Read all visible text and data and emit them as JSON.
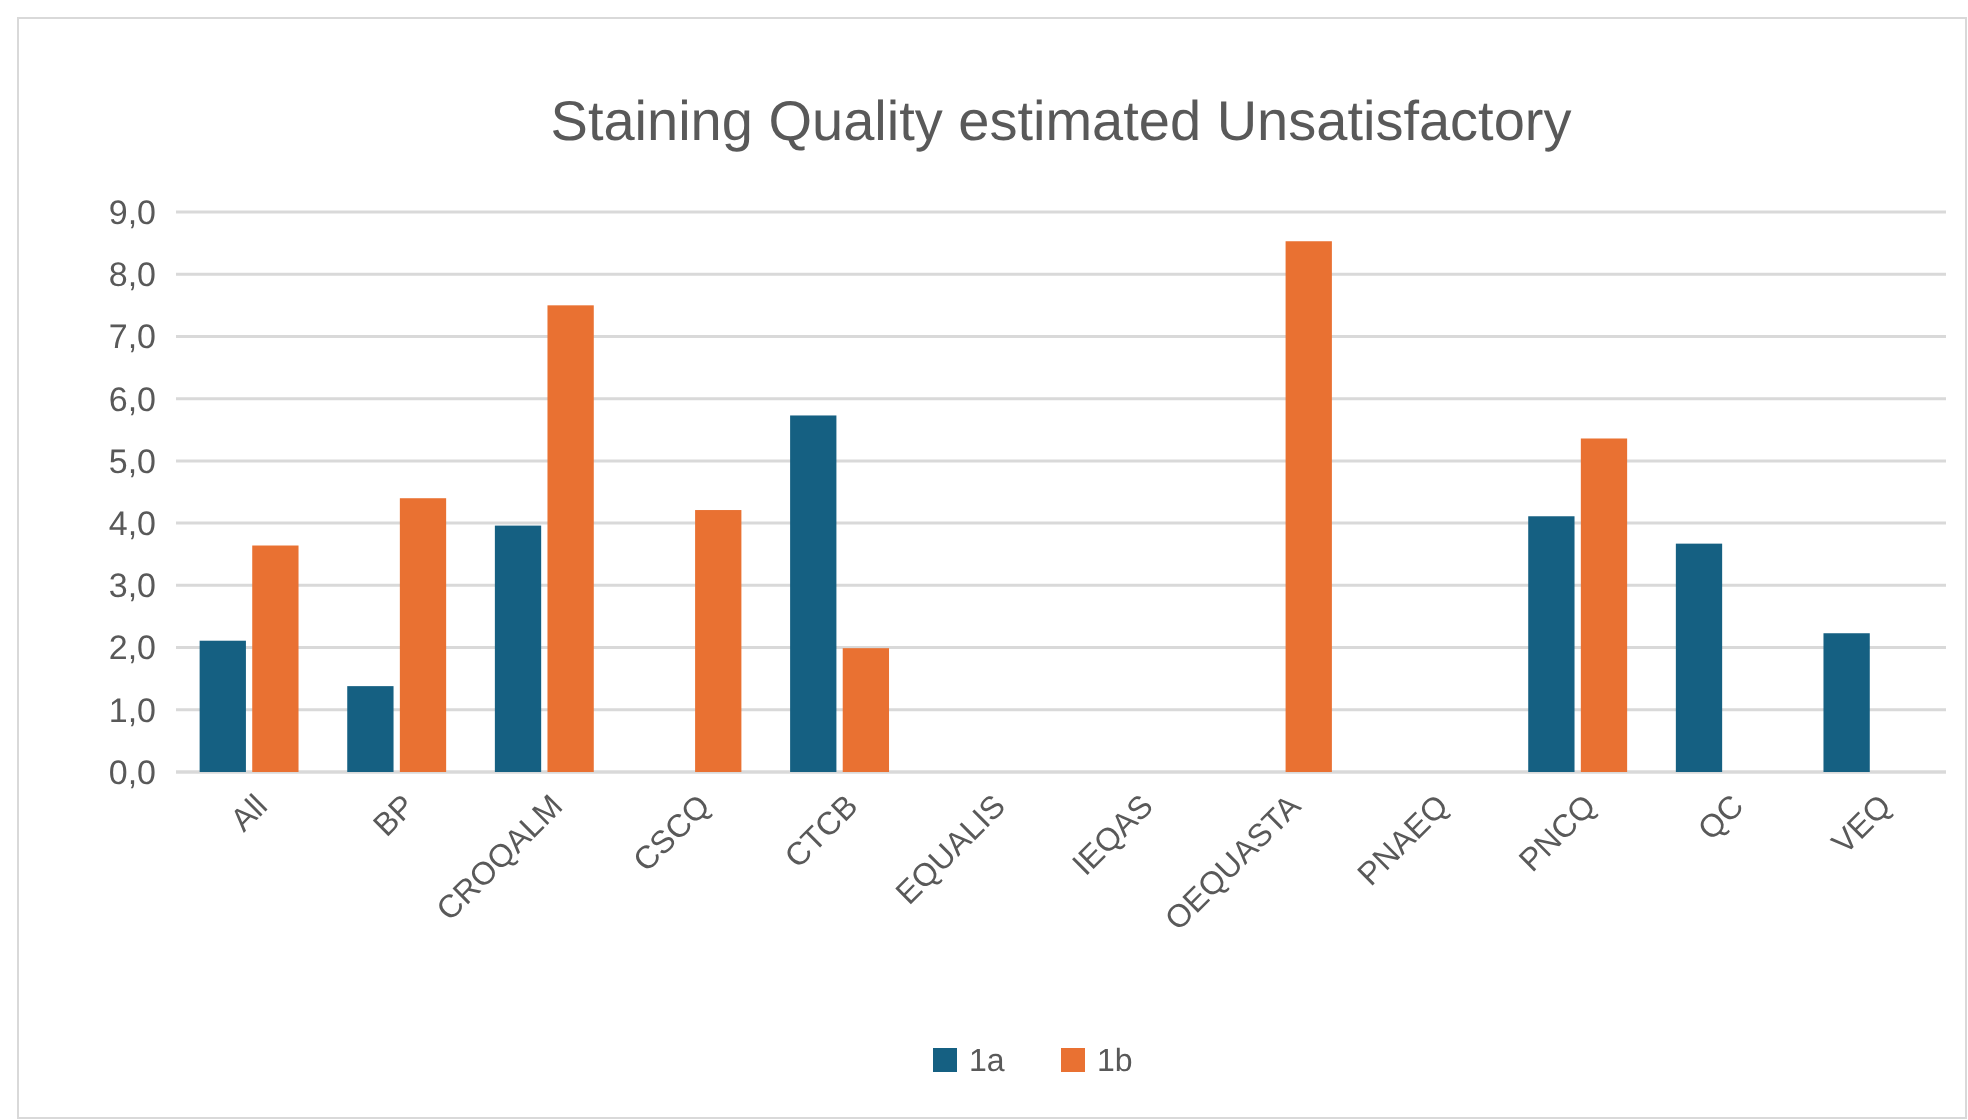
{
  "chart_data": {
    "type": "bar",
    "title": "Staining Quality estimated Unsatisfactory",
    "categories": [
      "All",
      "BP",
      "CROQALM",
      "CSCQ",
      "CTCB",
      "EQUALIS",
      "IEQAS",
      "OEQUASTA",
      "PNAEQ",
      "PNCQ",
      "QC",
      "VEQ"
    ],
    "series": [
      {
        "name": "1a",
        "color": "#156082",
        "values": [
          2.11,
          1.38,
          3.96,
          null,
          5.73,
          null,
          null,
          null,
          null,
          4.11,
          3.67,
          2.23
        ]
      },
      {
        "name": "1b",
        "color": "#e97132",
        "values": [
          3.64,
          4.4,
          7.5,
          4.21,
          1.99,
          null,
          null,
          8.53,
          null,
          5.36,
          null,
          null
        ]
      }
    ],
    "ylim": [
      0,
      9
    ],
    "yticks": [
      {
        "value": 0,
        "label": "0,0"
      },
      {
        "value": 1,
        "label": "1,0"
      },
      {
        "value": 2,
        "label": "2,0"
      },
      {
        "value": 3,
        "label": "3,0"
      },
      {
        "value": 4,
        "label": "4,0"
      },
      {
        "value": 5,
        "label": "5,0"
      },
      {
        "value": 6,
        "label": "6,0"
      },
      {
        "value": 7,
        "label": "7,0"
      },
      {
        "value": 8,
        "label": "8,0"
      },
      {
        "value": 9,
        "label": "9,0"
      }
    ],
    "grid": "y",
    "legend": "bottom"
  }
}
